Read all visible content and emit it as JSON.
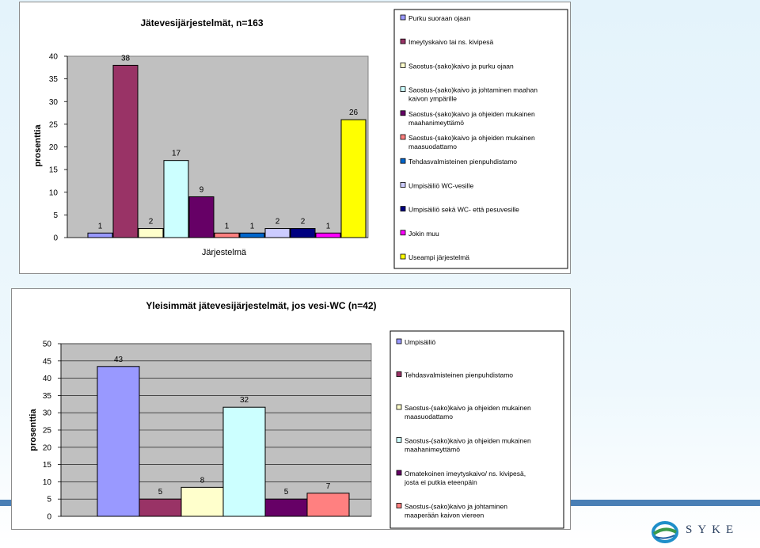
{
  "logo_text": "SYKE",
  "colors": {
    "band": "#4a7fb5",
    "frame_border": "#8c8c8c",
    "plot_bg": "#c0c0c0"
  },
  "chart_data": [
    {
      "type": "bar",
      "title": "Jätevesijärjestelmät, n=163",
      "ylabel": "prosenttia",
      "xlabel": "Järjestelmä",
      "ylim": [
        0,
        40
      ],
      "yticks": [
        "0",
        "5",
        "10",
        "15",
        "20",
        "25",
        "30",
        "35",
        "40"
      ],
      "grid": false,
      "legend_position": "right",
      "series": [
        {
          "name": "Purku suoraan ojaan",
          "value": 1,
          "label": "1",
          "color": "#9999ff"
        },
        {
          "name": "Imeytyskaivo tai ns. kivipesä",
          "value": 38,
          "label": "38",
          "color": "#993366"
        },
        {
          "name": "Saostus-(sako)kaivo ja purku ojaan",
          "value": 2,
          "label": "2",
          "color": "#ffffcc"
        },
        {
          "name": "Saostus-(sako)kaivo ja johtaminen maahan kaivon ympärille",
          "value": 17,
          "label": "17",
          "color": "#ccffff"
        },
        {
          "name": "Saostus-(sako)kaivo ja ohjeiden mukainen maahanimeyttämö",
          "value": 9,
          "label": "9",
          "color": "#660066"
        },
        {
          "name": "Saostus-(sako)kaivo ja ohjeiden mukainen maasuodattamo",
          "value": 1,
          "label": "1",
          "color": "#ff8080"
        },
        {
          "name": "Tehdasvalmisteinen pienpuhdistamo",
          "value": 1,
          "label": "1",
          "color": "#0066cc"
        },
        {
          "name": "Umpisäiliö WC-vesille",
          "value": 2,
          "label": "2",
          "color": "#ccccff"
        },
        {
          "name": "Umpisäiliö sekä WC- että pesuvesille",
          "value": 2,
          "label": "2",
          "color": "#000080"
        },
        {
          "name": "Jokin muu",
          "value": 1,
          "label": "1",
          "color": "#ff00ff"
        },
        {
          "name": "Useampi järjestelmä",
          "value": 26,
          "label": "26",
          "color": "#ffff00"
        }
      ]
    },
    {
      "type": "bar",
      "title": "Yleisimmät jätevesijärjestelmät, jos vesi-WC (n=42)",
      "ylabel": "prosenttia",
      "xlabel": "",
      "ylim": [
        0,
        50
      ],
      "yticks": [
        "0",
        "5",
        "10",
        "15",
        "20",
        "25",
        "30",
        "35",
        "40",
        "45",
        "50"
      ],
      "grid": true,
      "legend_position": "right",
      "series": [
        {
          "name": "Umpisäiliö",
          "value": 43.4,
          "label": "43",
          "color": "#9999ff"
        },
        {
          "name": "Tehdasvalmisteinen pienpuhdistamo",
          "value": 5,
          "label": "5",
          "color": "#993366"
        },
        {
          "name": "Saostus-(sako)kaivo ja ohjeiden mukainen maasuodattamo",
          "value": 8.4,
          "label": "8",
          "color": "#ffffcc"
        },
        {
          "name": "Saostus-(sako)kaivo ja ohjeiden mukainen maahanimeyttämö",
          "value": 31.6,
          "label": "32",
          "color": "#ccffff"
        },
        {
          "name": "Omatekoinen imeytyskaivo/ ns. kivipesä, josta ei putkia eteenpäin",
          "value": 5,
          "label": "5",
          "color": "#660066"
        },
        {
          "name": "Saostus-(sako)kaivo ja johtaminen maaperään kaivon viereen",
          "value": 6.7,
          "label": "7",
          "color": "#ff8080"
        }
      ]
    }
  ]
}
